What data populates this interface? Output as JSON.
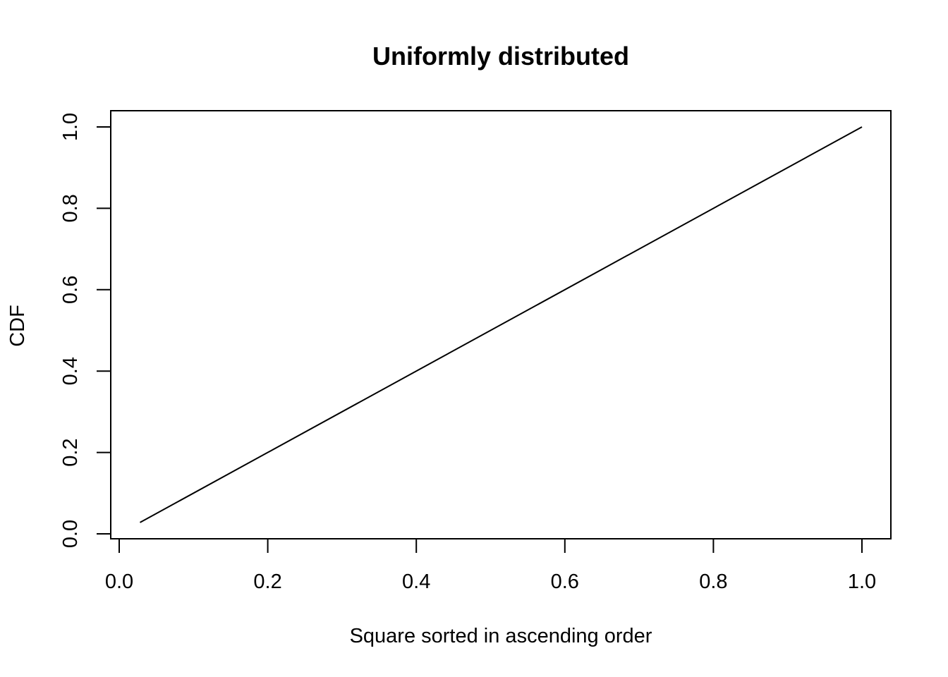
{
  "chart_data": {
    "type": "line",
    "title": "Uniformly distributed",
    "xlabel": "Square sorted in ascending order",
    "ylabel": "CDF",
    "xlim": [
      0.0,
      1.0
    ],
    "ylim": [
      0.0,
      1.0
    ],
    "x_ticks": [
      "0.0",
      "0.2",
      "0.4",
      "0.6",
      "0.8",
      "1.0"
    ],
    "y_ticks": [
      "0.0",
      "0.2",
      "0.4",
      "0.6",
      "0.8",
      "1.0"
    ],
    "grid": false,
    "series": [
      {
        "x": [
          0.028,
          1.0
        ],
        "y": [
          0.028,
          1.0
        ],
        "color": "#000000"
      }
    ]
  }
}
